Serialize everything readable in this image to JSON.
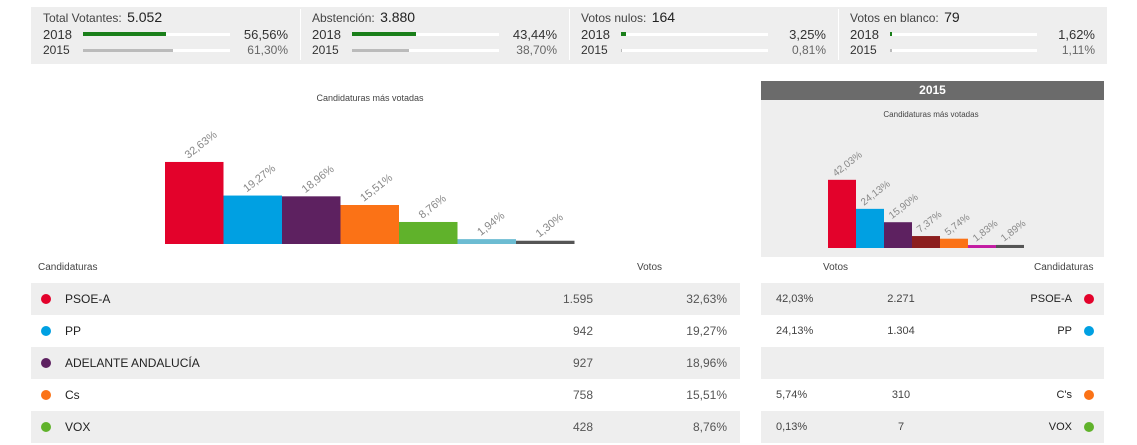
{
  "stats": [
    {
      "label": "Total Votantes:",
      "value": "5.052",
      "y2018": "2018",
      "p2018": "56,56%",
      "f2018": 0.5656,
      "y2015": "2015",
      "p2015": "61,30%",
      "f2015": 0.613
    },
    {
      "label": "Abstención:",
      "value": "3.880",
      "y2018": "2018",
      "p2018": "43,44%",
      "f2018": 0.4344,
      "y2015": "2015",
      "p2015": "38,70%",
      "f2015": 0.387
    },
    {
      "label": "Votos nulos:",
      "value": "164",
      "y2018": "2018",
      "p2018": "3,25%",
      "f2018": 0.0325,
      "y2015": "2015",
      "p2015": "0,81%",
      "f2015": 0.0081
    },
    {
      "label": "Votos en blanco:",
      "value": "79",
      "y2018": "2018",
      "p2018": "1,62%",
      "f2018": 0.0162,
      "y2015": "2015",
      "p2015": "1,11%",
      "f2015": 0.0111
    }
  ],
  "panel": {
    "title": "2015"
  },
  "chart_data": [
    {
      "type": "bar",
      "title": "Candidaturas más votadas",
      "values": [
        32.63,
        19.27,
        18.96,
        15.51,
        8.76,
        1.94,
        1.3
      ],
      "labels": [
        "32,63%",
        "19,27%",
        "18,96%",
        "15,51%",
        "8,76%",
        "1,94%",
        "1,30%"
      ],
      "colors": [
        "#e3022b",
        "#00a0e2",
        "#5d2160",
        "#fb7216",
        "#60b22b",
        "#6cbcd2",
        "#555555"
      ],
      "ylim": [
        0,
        35
      ]
    },
    {
      "type": "bar",
      "title": "Candidaturas más votadas",
      "values": [
        42.03,
        24.13,
        15.9,
        7.37,
        5.74,
        1.83,
        1.89
      ],
      "labels": [
        "42,03%",
        "24,13%",
        "15,90%",
        "7,37%",
        "5,74%",
        "1,83%",
        "1,89%"
      ],
      "colors": [
        "#e3022b",
        "#00a0e2",
        "#5d2160",
        "#8c1e1e",
        "#fb7216",
        "#c21ba2",
        "#555555"
      ],
      "ylim": [
        0,
        45
      ]
    }
  ],
  "table": {
    "left_header_cand": "Candidaturas",
    "left_header_votes": "Votos",
    "right_header_votes": "Votos",
    "right_header_cand": "Candidaturas",
    "rows_2018": [
      {
        "name": "PSOE-A",
        "votes": "1.595",
        "pct": "32,63%",
        "color": "#e3022b"
      },
      {
        "name": "PP",
        "votes": "942",
        "pct": "19,27%",
        "color": "#00a0e2"
      },
      {
        "name": "ADELANTE ANDALUCÍA",
        "votes": "927",
        "pct": "18,96%",
        "color": "#5d2160"
      },
      {
        "name": "Cs",
        "votes": "758",
        "pct": "15,51%",
        "color": "#fb7216"
      },
      {
        "name": "VOX",
        "votes": "428",
        "pct": "8,76%",
        "color": "#60b22b"
      }
    ],
    "rows_2015": [
      {
        "name": "PSOE-A",
        "votes": "2.271",
        "pct": "42,03%",
        "color": "#e3022b"
      },
      {
        "name": "PP",
        "votes": "1.304",
        "pct": "24,13%",
        "color": "#00a0e2"
      },
      {
        "name": "",
        "votes": "",
        "pct": "",
        "color": ""
      },
      {
        "name": "C's",
        "votes": "310",
        "pct": "5,74%",
        "color": "#fb7216"
      },
      {
        "name": "VOX",
        "votes": "7",
        "pct": "0,13%",
        "color": "#60b22b"
      }
    ]
  }
}
